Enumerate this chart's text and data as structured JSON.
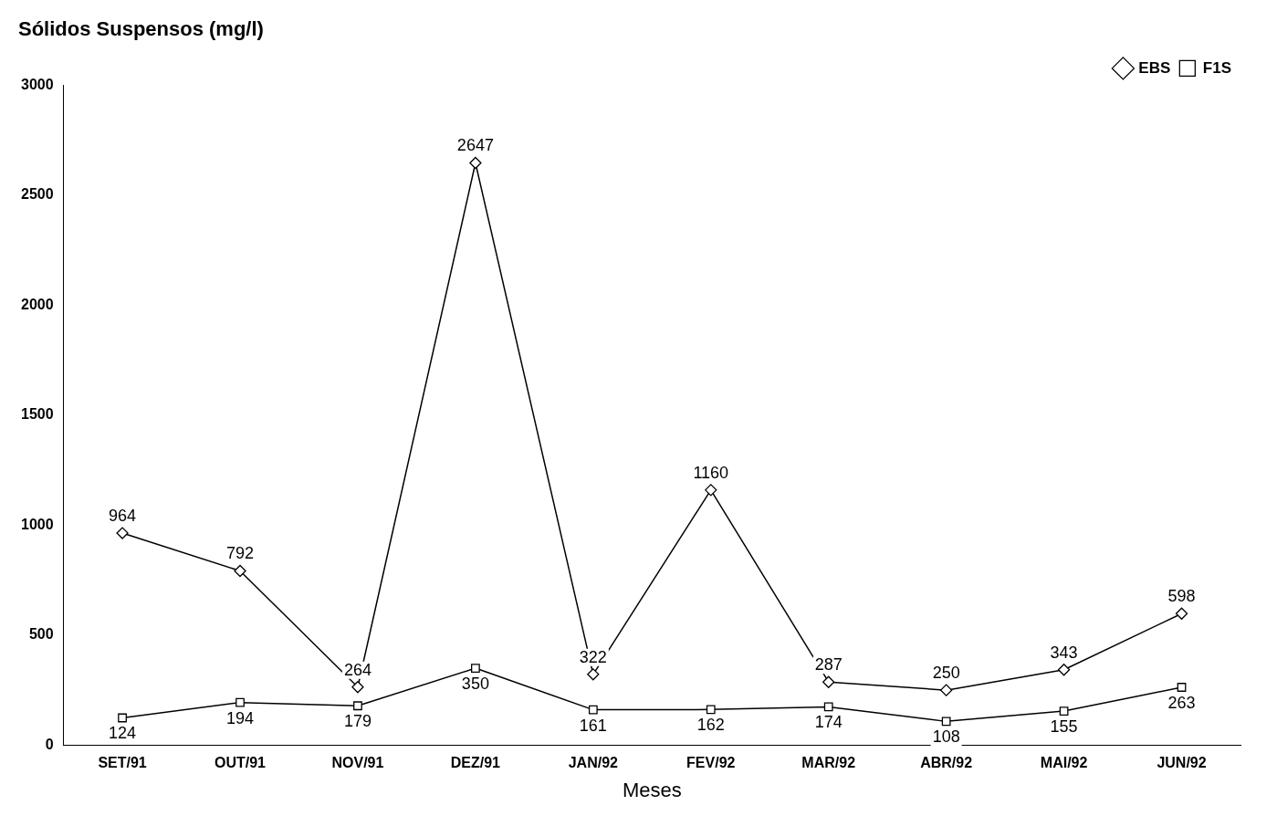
{
  "chart_data": {
    "type": "line",
    "title": "Sólidos Suspensos (mg/l)",
    "xlabel": "Meses",
    "categories": [
      "SET/91",
      "OUT/91",
      "NOV/91",
      "DEZ/91",
      "JAN/92",
      "FEV/92",
      "MAR/92",
      "ABR/92",
      "MAI/92",
      "JUN/92"
    ],
    "series": [
      {
        "name": "EBS",
        "color": "#000000",
        "marker": "diamond",
        "values": [
          964,
          792,
          264,
          2647,
          322,
          1160,
          287,
          250,
          343,
          598
        ]
      },
      {
        "name": "F1S",
        "color": "#000000",
        "marker": "square",
        "values": [
          124,
          194,
          179,
          350,
          161,
          162,
          174,
          108,
          155,
          263
        ]
      }
    ],
    "ylim": [
      0,
      3000
    ],
    "yticks": [
      0,
      500,
      1000,
      1500,
      2000,
      2500,
      3000
    ],
    "grid": false,
    "legend": "top right",
    "data_labels": true,
    "line_style": "solid"
  }
}
